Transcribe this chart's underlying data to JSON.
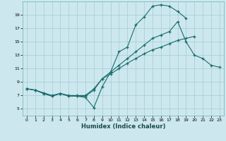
{
  "title": "",
  "xlabel": "Humidex (Indice chaleur)",
  "bg_color": "#cce8ee",
  "grid_color": "#aad0d8",
  "line_color": "#1a6b6b",
  "xlim": [
    -0.5,
    23.5
  ],
  "ylim": [
    4.0,
    21.0
  ],
  "yticks": [
    5,
    7,
    9,
    11,
    13,
    15,
    17,
    19
  ],
  "xticks": [
    0,
    1,
    2,
    3,
    4,
    5,
    6,
    7,
    8,
    9,
    10,
    11,
    12,
    13,
    14,
    15,
    16,
    17,
    18,
    19,
    20,
    21,
    22,
    23
  ],
  "line1_x": [
    0,
    1,
    2,
    3,
    4,
    5,
    6,
    7,
    8,
    9,
    10,
    11,
    12,
    13,
    14,
    15,
    16,
    17,
    18,
    19,
    20,
    21,
    22,
    23
  ],
  "line1_y": [
    8.0,
    7.8,
    7.4,
    7.0,
    7.3,
    7.0,
    7.0,
    7.0,
    8.0,
    9.5,
    10.5,
    11.5,
    12.5,
    13.5,
    14.5,
    15.5,
    16.0,
    16.5,
    18.0,
    15.0,
    13.0,
    12.5,
    11.5,
    11.2
  ],
  "line2_x": [
    0,
    1,
    2,
    3,
    4,
    5,
    6,
    7,
    8,
    9,
    10,
    11,
    12,
    13,
    14,
    15,
    16,
    17,
    18,
    19
  ],
  "line2_y": [
    8.0,
    7.8,
    7.3,
    6.9,
    7.3,
    6.9,
    6.9,
    6.7,
    5.2,
    8.3,
    10.5,
    13.5,
    14.2,
    17.5,
    18.7,
    20.3,
    20.5,
    20.3,
    19.5,
    18.5
  ],
  "line3_x": [
    0,
    1,
    2,
    3,
    4,
    5,
    6,
    7,
    8,
    9,
    10,
    11,
    12,
    13,
    14,
    15,
    16,
    17,
    18,
    19,
    20
  ],
  "line3_y": [
    8.0,
    7.8,
    7.3,
    6.9,
    7.3,
    6.9,
    6.9,
    6.9,
    7.8,
    9.5,
    10.2,
    11.0,
    11.8,
    12.5,
    13.2,
    13.8,
    14.2,
    14.7,
    15.2,
    15.5,
    15.8
  ]
}
